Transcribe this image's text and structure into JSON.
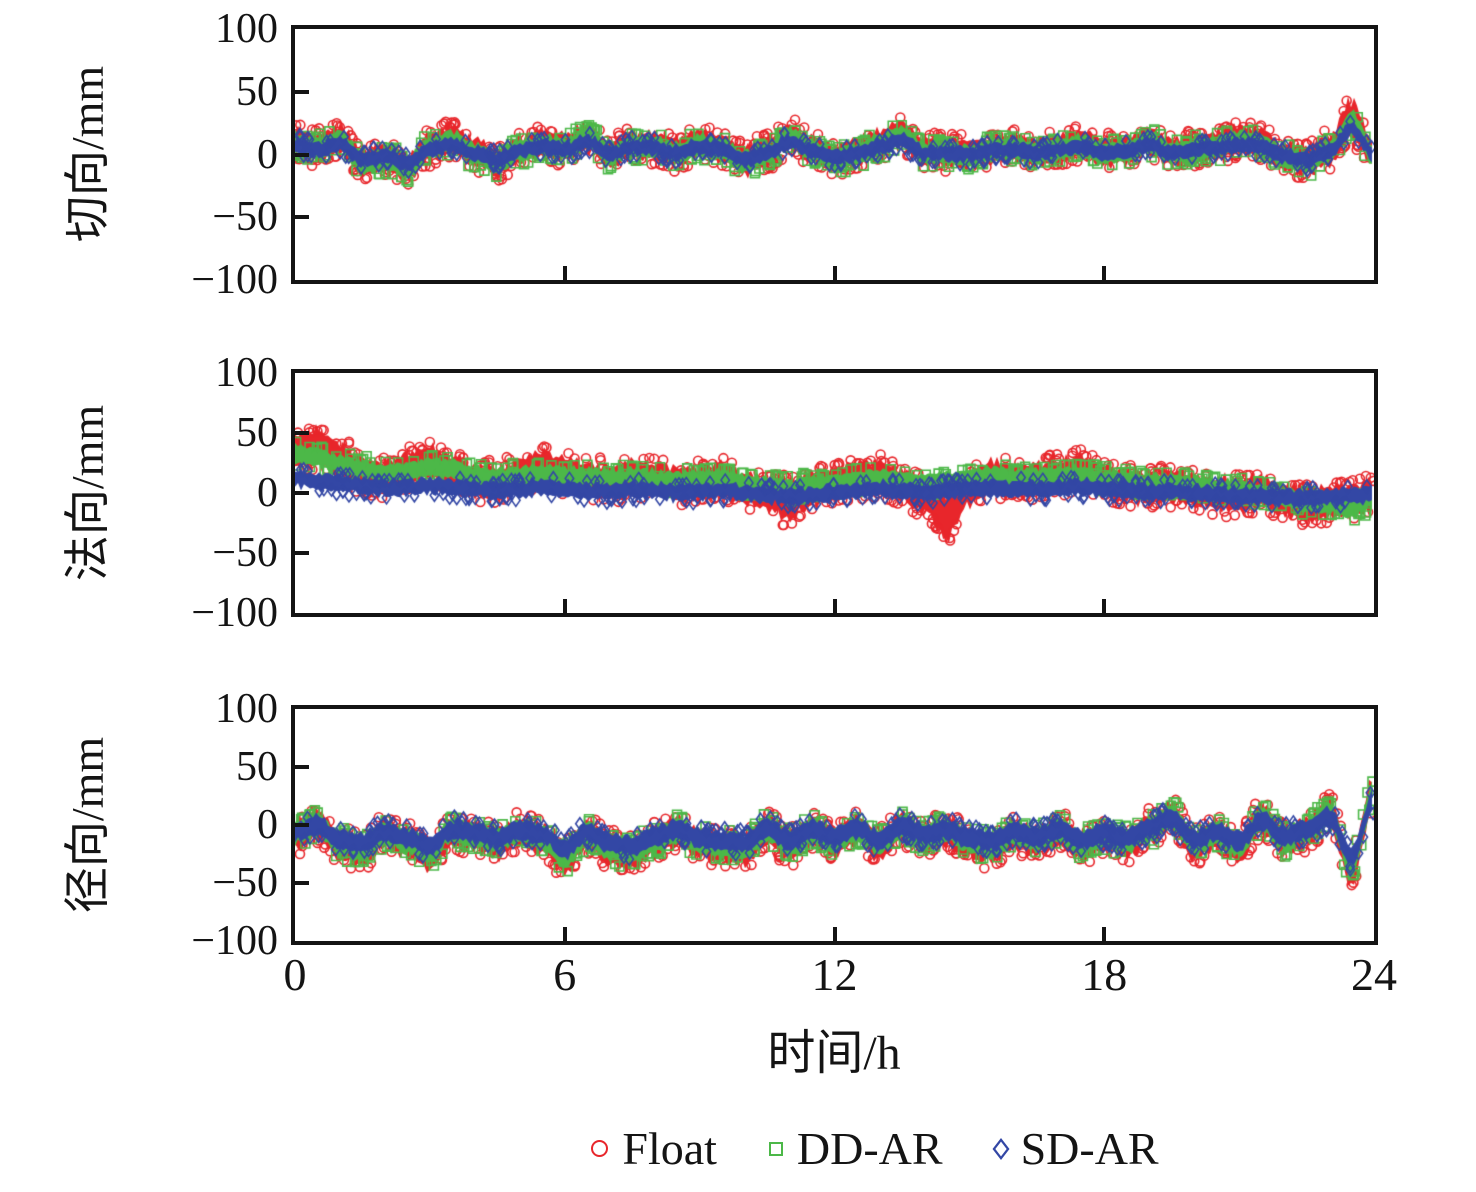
{
  "chart_data": {
    "type": "scatter",
    "xlabel": "时间/h",
    "x_range": [
      0,
      24
    ],
    "x_ticks": [
      0,
      6,
      12,
      18,
      24
    ],
    "x_tick_labels": [
      "0",
      "6",
      "12",
      "18",
      "24"
    ],
    "y_range": [
      -100,
      100
    ],
    "y_ticks": [
      100,
      50,
      0,
      -50,
      -100
    ],
    "y_tick_labels": [
      "100",
      "50",
      "0",
      "−50",
      "−100"
    ],
    "y_inner_tick_values": [
      50,
      0,
      -50
    ],
    "x_inner_tick_values": [
      6,
      12,
      18
    ],
    "grid": false,
    "legend_position": "bottom-center",
    "sample_step_h": 0.5,
    "legend": [
      {
        "label": "Float",
        "marker": "circle",
        "color": "#e8262b"
      },
      {
        "label": "DD-AR",
        "marker": "square",
        "color": "#4cb848"
      },
      {
        "label": "SD-AR",
        "marker": "diamond",
        "color": "#3347a5"
      }
    ],
    "subplots": [
      {
        "ylabel": "切向/mm",
        "series": [
          {
            "name": "Float",
            "marker": "circle",
            "color": "#e8262b",
            "mean": [
              10,
              6,
              12,
              -6,
              -2,
              -10,
              6,
              12,
              2,
              -6,
              4,
              9,
              6,
              14,
              0,
              8,
              7,
              2,
              9,
              5,
              -5,
              2,
              14,
              4,
              -3,
              2,
              9,
              16,
              2,
              2,
              0,
              4,
              6,
              2,
              5,
              9,
              2,
              4,
              11,
              2,
              5,
              7,
              12,
              9,
              -2,
              -5,
              3,
              28,
              0
            ],
            "half": {
              "base": 13,
              "at": {
                "43": 14,
                "46": 15,
                "47": 18
              }
            }
          },
          {
            "name": "DD-AR",
            "marker": "square",
            "color": "#4cb848",
            "mean": [
              9,
              5,
              11,
              -7,
              -3,
              -11,
              5,
              11,
              1,
              -7,
              3,
              8,
              5,
              13,
              -1,
              7,
              6,
              1,
              8,
              4,
              -6,
              1,
              13,
              3,
              -4,
              1,
              8,
              15,
              1,
              1,
              -1,
              3,
              5,
              1,
              4,
              8,
              1,
              3,
              10,
              1,
              4,
              6,
              11,
              8,
              -3,
              -6,
              2,
              26,
              -1
            ],
            "half": {
              "base": 10,
              "at": {}
            }
          },
          {
            "name": "SD-AR",
            "marker": "diamond",
            "color": "#3347a5",
            "mean": [
              7,
              4,
              8,
              -4,
              -1,
              -7,
              4,
              8,
              1,
              -4,
              3,
              6,
              4,
              10,
              0,
              6,
              5,
              1,
              6,
              4,
              -4,
              1,
              10,
              3,
              -2,
              1,
              6,
              11,
              1,
              1,
              0,
              3,
              4,
              1,
              4,
              6,
              1,
              3,
              8,
              1,
              4,
              5,
              8,
              6,
              -1,
              -4,
              2,
              20,
              0
            ],
            "half": {
              "base": 7,
              "at": {}
            }
          }
        ]
      },
      {
        "ylabel": "法向/mm",
        "series": [
          {
            "name": "Float",
            "marker": "circle",
            "color": "#e8262b",
            "mean": [
              35,
              38,
              28,
              16,
              12,
              20,
              26,
              18,
              10,
              8,
              16,
              22,
              16,
              12,
              10,
              14,
              12,
              8,
              10,
              12,
              4,
              0,
              -6,
              4,
              8,
              12,
              14,
              6,
              -2,
              -20,
              4,
              14,
              10,
              12,
              14,
              18,
              10,
              6,
              4,
              6,
              2,
              0,
              -2,
              2,
              -6,
              -10,
              -8,
              -6,
              -2
            ],
            "half": {
              "base": 16,
              "at": {
                "1": 18,
                "22": 20,
                "23": 18,
                "29": 22
              }
            }
          },
          {
            "name": "DD-AR",
            "marker": "square",
            "color": "#4cb848",
            "mean": [
              33,
              30,
              24,
              20,
              16,
              18,
              22,
              20,
              15,
              13,
              14,
              16,
              14,
              13,
              12,
              14,
              12,
              10,
              11,
              12,
              8,
              6,
              4,
              6,
              8,
              10,
              12,
              10,
              8,
              10,
              12,
              14,
              12,
              13,
              14,
              15,
              12,
              10,
              8,
              8,
              6,
              4,
              2,
              0,
              -4,
              -8,
              -10,
              -12,
              -6
            ],
            "half": {
              "base": 9,
              "at": {}
            }
          },
          {
            "name": "SD-AR",
            "marker": "diamond",
            "color": "#3347a5",
            "mean": [
              12,
              10,
              8,
              6,
              4,
              5,
              6,
              5,
              3,
              2,
              3,
              5,
              3,
              2,
              1,
              3,
              2,
              0,
              1,
              2,
              0,
              -2,
              -3,
              -2,
              0,
              2,
              3,
              2,
              0,
              2,
              3,
              4,
              3,
              3,
              4,
              5,
              3,
              2,
              1,
              1,
              0,
              -1,
              -2,
              -3,
              -4,
              -4,
              -3,
              -2,
              0
            ],
            "half": {
              "base": 8,
              "at": {}
            }
          }
        ]
      },
      {
        "ylabel": "径向/mm",
        "series": [
          {
            "name": "Float",
            "marker": "circle",
            "color": "#e8262b",
            "mean": [
              -8,
              0,
              -18,
              -22,
              -8,
              -16,
              -26,
              -6,
              -10,
              -16,
              -6,
              -12,
              -30,
              -8,
              -22,
              -26,
              -14,
              -6,
              -16,
              -20,
              -22,
              -4,
              -18,
              -6,
              -14,
              -4,
              -18,
              -2,
              -12,
              -6,
              -16,
              -20,
              -8,
              -14,
              -6,
              -18,
              -10,
              -16,
              -4,
              8,
              -18,
              -8,
              -20,
              6,
              -14,
              -6,
              10,
              -38,
              30
            ],
            "half": {
              "base": 15,
              "at": {
                "47": 17,
                "48": 16
              }
            }
          },
          {
            "name": "DD-AR",
            "marker": "square",
            "color": "#4cb848",
            "mean": [
              -7,
              0,
              -16,
              -20,
              -7,
              -14,
              -23,
              -5,
              -9,
              -14,
              -5,
              -11,
              -27,
              -7,
              -20,
              -23,
              -13,
              -5,
              -14,
              -18,
              -20,
              -4,
              -16,
              -5,
              -13,
              -4,
              -16,
              -2,
              -11,
              -5,
              -14,
              -18,
              -7,
              -13,
              -5,
              -16,
              -9,
              -14,
              -4,
              7,
              -16,
              -7,
              -18,
              5,
              -13,
              -5,
              9,
              -34,
              27
            ],
            "half": {
              "base": 12,
              "at": {}
            }
          },
          {
            "name": "SD-AR",
            "marker": "diamond",
            "color": "#3347a5",
            "mean": [
              -6,
              0,
              -13,
              -15,
              -6,
              -11,
              -18,
              -4,
              -7,
              -11,
              -4,
              -8,
              -21,
              -6,
              -15,
              -18,
              -10,
              -4,
              -11,
              -14,
              -15,
              -3,
              -13,
              -4,
              -10,
              -3,
              -13,
              -1,
              -8,
              -4,
              -11,
              -14,
              -6,
              -10,
              -4,
              -13,
              -7,
              -11,
              -3,
              6,
              -13,
              -6,
              -14,
              4,
              -10,
              -4,
              7,
              -27,
              21
            ],
            "half": {
              "base": 10,
              "at": {}
            }
          }
        ]
      }
    ]
  }
}
